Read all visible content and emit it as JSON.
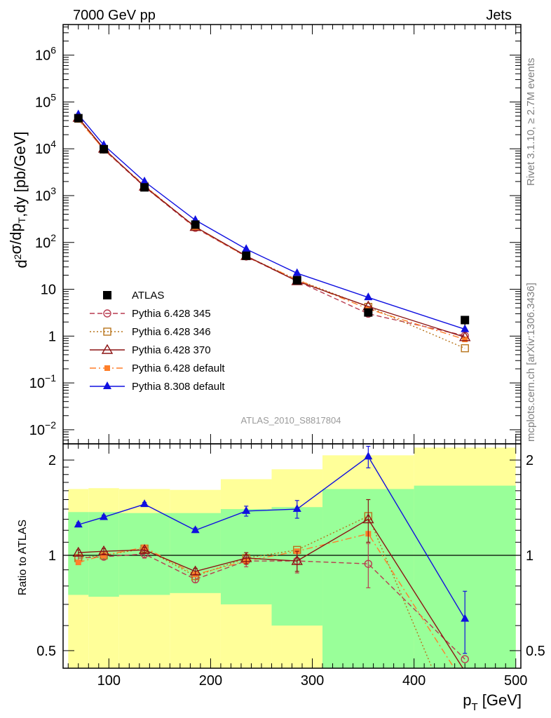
{
  "header": {
    "left": "7000 GeV pp",
    "right": "Jets"
  },
  "side": {
    "rivet": "Rivet 3.1.10, ≥ 2.7M events",
    "mcplots": "mcplots.cern.ch [arXiv:1306.3436]"
  },
  "analysis_id": "ATLAS_2010_S8817804",
  "main_ylabel": "d²σ/dp_T,dy [pb/GeV]",
  "ratio_ylabel": "Ratio to ATLAS",
  "xlabel": "p_T [GeV]",
  "chart_data": [
    {
      "type": "line",
      "panel": "main",
      "yscale": "log",
      "xlim": [
        55,
        505
      ],
      "ylim": [
        0.005,
        4500000
      ],
      "x": [
        70,
        95,
        135,
        185,
        235,
        285,
        355,
        450
      ],
      "x_ticks": [
        100,
        200,
        300,
        400,
        500
      ],
      "y_ticks": [
        "10^-2",
        "10^-1",
        "1",
        "10",
        "10^2",
        "10^3",
        "10^4",
        "10^5",
        "10^6"
      ],
      "legend_position": "lower-left",
      "series": [
        {
          "name": "ATLAS",
          "color": "#000000",
          "marker": "square-filled",
          "line": "none",
          "values": [
            45000,
            9800,
            1500,
            240,
            52,
            15.5,
            3.2,
            2.2
          ],
          "errors": [
            5000,
            900,
            150,
            25,
            6,
            2,
            0.6,
            0.5
          ]
        },
        {
          "name": "Pythia 6.428 345",
          "color": "#b83c50",
          "marker": "circle-open",
          "line": "dashed",
          "values": [
            44000,
            9600,
            1550,
            205,
            50,
            15,
            3,
            1.02
          ]
        },
        {
          "name": "Pythia 6.428 346",
          "color": "#b8741c",
          "marker": "square-open",
          "line": "dotted",
          "values": [
            44000,
            9700,
            1600,
            215,
            51,
            16,
            4.2,
            0.55
          ]
        },
        {
          "name": "Pythia 6.428 370",
          "color": "#8c1414",
          "marker": "triangle-open",
          "line": "solid",
          "values": [
            46000,
            10100,
            1560,
            215,
            51.5,
            14.9,
            4.3,
            0.95
          ]
        },
        {
          "name": "Pythia 6.428 default",
          "color": "#ff7f2a",
          "marker": "square-filled-small",
          "line": "dashdot",
          "values": [
            42000,
            9700,
            1650,
            210,
            50,
            16,
            3.8,
            0.85
          ]
        },
        {
          "name": "Pythia 8.308 default",
          "color": "#1010e0",
          "marker": "triangle-filled",
          "line": "solid",
          "values": [
            54000,
            12000,
            2000,
            300,
            72,
            22,
            6.7,
            1.4
          ]
        }
      ]
    },
    {
      "type": "line",
      "panel": "ratio",
      "yscale": "log",
      "xlim": [
        55,
        505
      ],
      "ylim": [
        0.44,
        2.25
      ],
      "y_ticks": [
        0.5,
        1,
        2
      ],
      "reference_line": 1,
      "bins": [
        [
          60,
          80
        ],
        [
          80,
          110
        ],
        [
          110,
          160
        ],
        [
          160,
          210
        ],
        [
          210,
          260
        ],
        [
          260,
          310
        ],
        [
          310,
          400
        ],
        [
          400,
          500
        ]
      ],
      "band_inner": [
        [
          0.75,
          1.37
        ],
        [
          0.74,
          1.37
        ],
        [
          0.75,
          1.36
        ],
        [
          0.76,
          1.36
        ],
        [
          0.7,
          1.4
        ],
        [
          0.6,
          1.42
        ],
        [
          0.34,
          1.62
        ],
        [
          0.34,
          1.66
        ]
      ],
      "band_outer": [
        [
          0.34,
          1.62
        ],
        [
          0.34,
          1.63
        ],
        [
          0.34,
          1.62
        ],
        [
          0.37,
          1.61
        ],
        [
          0.34,
          1.74
        ],
        [
          0.34,
          1.87
        ],
        [
          0.34,
          2.07
        ],
        [
          0.34,
          2.19
        ]
      ],
      "x": [
        70,
        95,
        135,
        185,
        235,
        285,
        355,
        450
      ],
      "series": [
        {
          "name": "Pythia 6.428 345",
          "color": "#b83c50",
          "line": "dashed",
          "values": [
            0.98,
            0.99,
            1.01,
            0.84,
            0.96,
            0.96,
            0.94,
            0.47
          ],
          "errors": [
            0.02,
            0.02,
            0.03,
            0.02,
            0.04,
            0.08,
            0.15,
            0
          ]
        },
        {
          "name": "Pythia 6.428 346",
          "color": "#b8741c",
          "line": "dotted",
          "values": [
            0.98,
            1.0,
            1.05,
            0.86,
            0.98,
            1.04,
            1.33,
            0.25
          ]
        },
        {
          "name": "Pythia 6.428 370",
          "color": "#8c1414",
          "line": "solid",
          "values": [
            1.02,
            1.03,
            1.04,
            0.89,
            0.98,
            0.96,
            1.3,
            0.43
          ],
          "errors": [
            0.02,
            0.02,
            0.02,
            0.02,
            0.04,
            0.07,
            0.2,
            0
          ]
        },
        {
          "name": "Pythia 6.428 default",
          "color": "#ff7f2a",
          "line": "dashdot",
          "values": [
            0.95,
            1.0,
            1.06,
            0.87,
            0.96,
            1.03,
            1.17,
            0.39
          ]
        },
        {
          "name": "Pythia 8.308 default",
          "color": "#1010e0",
          "line": "solid",
          "values": [
            1.25,
            1.32,
            1.45,
            1.2,
            1.38,
            1.4,
            2.05,
            0.63
          ],
          "errors": [
            0.02,
            0.02,
            0.02,
            0.02,
            0.05,
            0.09,
            0.16,
            0.14
          ]
        }
      ]
    }
  ]
}
